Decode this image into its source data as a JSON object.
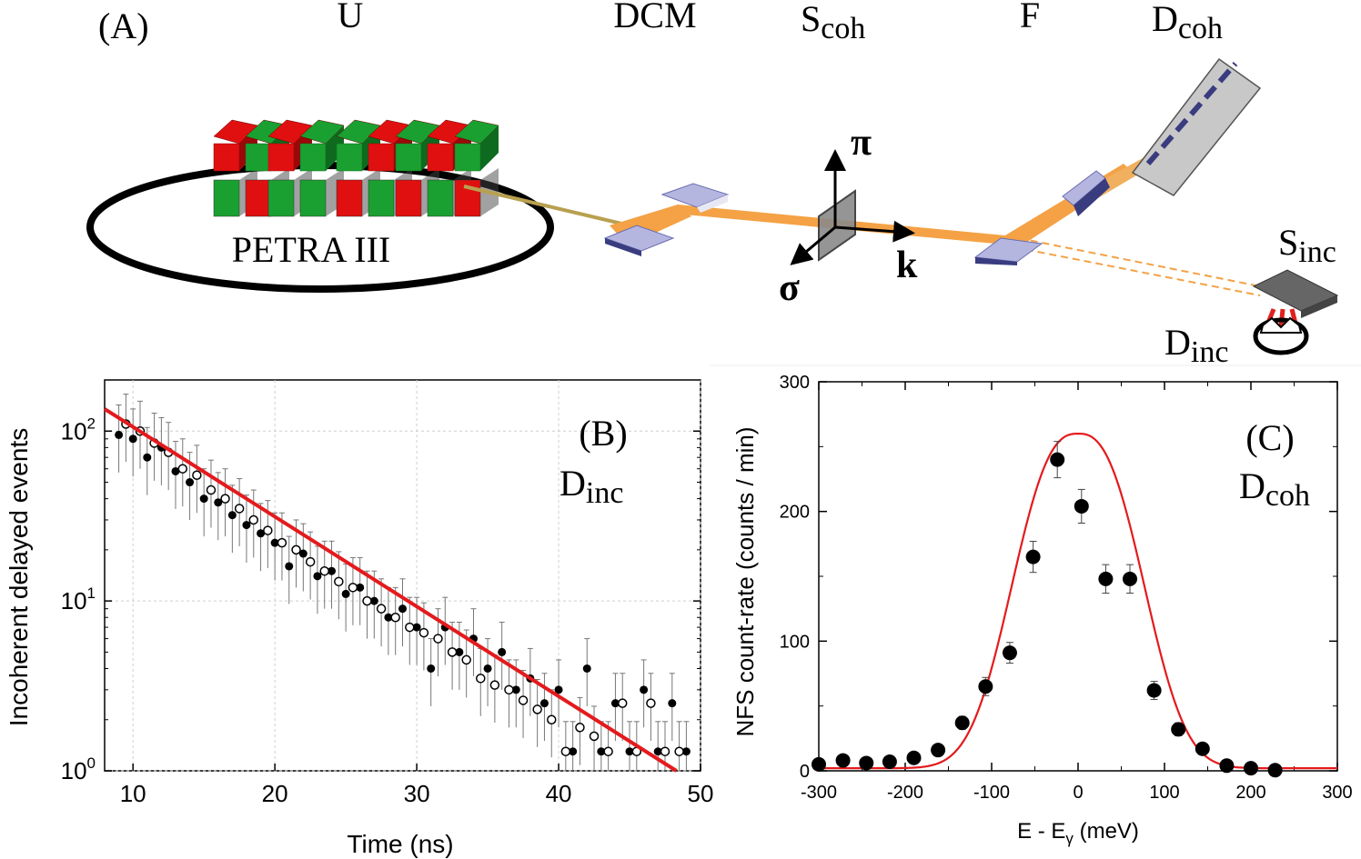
{
  "panel_a": {
    "tag": "(A)",
    "labels": {
      "undulator": "U",
      "dcm": "DCM",
      "s_main": "S",
      "s_coh_sub": "coh",
      "filter": "F",
      "d_main": "D",
      "d_coh_sub": "coh",
      "s_inc_main": "S",
      "s_inc_sub": "inc",
      "d_inc_main": "D",
      "d_inc_sub": "inc",
      "ring": "PETRA III",
      "pi": "π",
      "sigma": "σ",
      "k": "k"
    }
  },
  "chart_data": [
    {
      "type": "scatter",
      "panel": "(B)",
      "inset_main": "D",
      "inset_sub": "inc",
      "xlabel": "Time (ns)",
      "ylabel": "Incoherent delayed events",
      "xlim": [
        8,
        50
      ],
      "ylim": [
        1,
        200
      ],
      "yscale": "log",
      "grid": true,
      "x_ticks": [
        "10",
        "20",
        "30",
        "40",
        "50"
      ],
      "y_ticks": [
        {
          "base": "10",
          "exp": "0",
          "value": 1
        },
        {
          "base": "10",
          "exp": "1",
          "value": 10
        },
        {
          "base": "10",
          "exp": "2",
          "value": 100
        }
      ],
      "series": [
        {
          "name": "filled",
          "marker": "filled-circle",
          "x": [
            9.0,
            10.0,
            11.0,
            12.0,
            13.0,
            14.0,
            15.0,
            16.0,
            17.0,
            18.0,
            19.0,
            20.0,
            21.0,
            22.0,
            23.0,
            24.0,
            25.0,
            26.0,
            27.0,
            28.0,
            29.0,
            30.0,
            31.0,
            32.0,
            33.0,
            34.0,
            35.0,
            36.0,
            37.0,
            38.0,
            39.0,
            40.0,
            41.0,
            42.0,
            43.0,
            44.0,
            45.0,
            46.0,
            47.0,
            48.0,
            49.0
          ],
          "y": [
            95,
            90,
            70,
            80,
            58,
            50,
            40,
            38,
            32,
            28,
            25,
            22,
            16,
            19,
            14,
            15,
            11,
            12,
            10,
            8,
            9,
            7,
            4,
            7,
            5,
            6,
            4,
            5,
            3,
            3.5,
            2.5,
            3,
            1.3,
            4,
            1.3,
            2.5,
            1.3,
            3,
            1.3,
            2.5,
            1.3
          ]
        },
        {
          "name": "open",
          "marker": "open-circle",
          "x": [
            9.5,
            10.5,
            11.5,
            12.5,
            13.5,
            14.5,
            15.5,
            16.5,
            17.5,
            18.5,
            19.5,
            20.5,
            21.5,
            22.5,
            23.5,
            24.5,
            25.5,
            26.5,
            27.5,
            28.5,
            29.5,
            30.5,
            31.5,
            32.5,
            33.5,
            34.5,
            35.5,
            36.5,
            37.5,
            38.5,
            39.5,
            40.5,
            41.5,
            42.5,
            43.5,
            44.5,
            45.5,
            46.5,
            47.5,
            48.5
          ],
          "y": [
            110,
            100,
            85,
            75,
            60,
            55,
            45,
            40,
            35,
            30,
            26,
            22,
            20,
            17,
            15,
            13,
            12,
            10,
            9,
            8,
            7,
            6.5,
            6,
            5,
            4.5,
            3.5,
            3.2,
            3,
            2.6,
            2.3,
            2,
            1.3,
            1.8,
            1.6,
            1.3,
            2.5,
            1.3,
            2.5,
            1.3,
            1.3
          ]
        }
      ],
      "fit": {
        "name": "fit",
        "color": "#e41a1c",
        "x": [
          8,
          48.3
        ],
        "y": [
          135,
          1
        ]
      }
    },
    {
      "type": "scatter",
      "panel": "(C)",
      "inset_main": "D",
      "inset_sub": "coh",
      "xlabel_main": "E - E",
      "xlabel_sub": "γ",
      "xlabel_unit": " (meV)",
      "ylabel": "NFS count-rate (counts / min)",
      "xlim": [
        -300,
        300
      ],
      "ylim": [
        0,
        300
      ],
      "grid": false,
      "x_ticks": [
        "-300",
        "-200",
        "-100",
        "0",
        "100",
        "200",
        "300"
      ],
      "y_ticks": [
        "0",
        "100",
        "200",
        "300"
      ],
      "series": [
        {
          "name": "data",
          "marker": "filled-circle",
          "x": [
            -300,
            -272,
            -245,
            -218,
            -190,
            -162,
            -134,
            -107,
            -79,
            -52,
            -24,
            4,
            32,
            60,
            88,
            116,
            144,
            172,
            200,
            228
          ],
          "y": [
            5,
            8,
            6,
            7,
            10,
            16,
            37,
            65,
            91,
            165,
            240,
            204,
            148,
            148,
            62,
            32,
            17,
            4,
            2,
            0.5
          ],
          "err": [
            3,
            3,
            3,
            3,
            3,
            4,
            5,
            7,
            8,
            12,
            14,
            13,
            11,
            11,
            7,
            5,
            4,
            2,
            2,
            1
          ]
        }
      ],
      "fit": {
        "name": "fit",
        "color": "#e41a1c",
        "center": 0,
        "peak": 260,
        "fwhm": 140,
        "baseline": 2
      }
    }
  ]
}
